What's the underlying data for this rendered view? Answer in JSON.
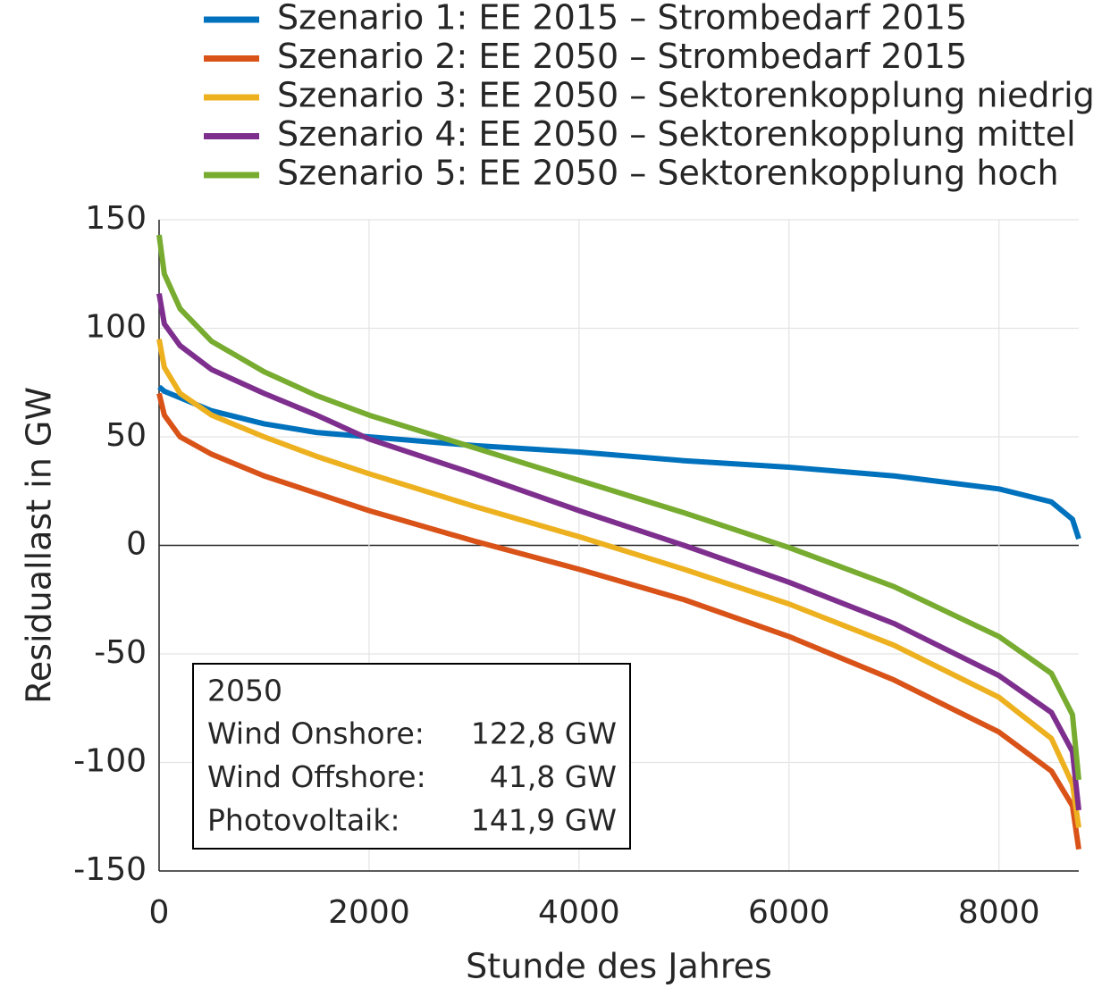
{
  "chart_data": {
    "type": "line",
    "x_label": "Stunde des Jahres",
    "y_label": "Residuallast in GW",
    "x": [
      0,
      50,
      200,
      500,
      1000,
      1500,
      2000,
      3000,
      4000,
      5000,
      6000,
      7000,
      8000,
      8500,
      8700,
      8760
    ],
    "series": [
      {
        "name": "Szenario 1: EE 2015 – Strombedarf 2015",
        "color": "#0072bd",
        "values": [
          73,
          71,
          68,
          62,
          56,
          52,
          50,
          46,
          43,
          39,
          36,
          32,
          26,
          20,
          12,
          3
        ]
      },
      {
        "name": "Szenario 2: EE 2050 – Strombedarf 2015",
        "color": "#d95319",
        "values": [
          70,
          60,
          50,
          42,
          32,
          24,
          16,
          2,
          -11,
          -25,
          -42,
          -62,
          -86,
          -104,
          -120,
          -140
        ]
      },
      {
        "name": "Szenario 3: EE 2050 – Sektorenkopplung niedrig",
        "color": "#edb120",
        "values": [
          95,
          82,
          70,
          60,
          50,
          41,
          33,
          18,
          4,
          -11,
          -27,
          -46,
          -70,
          -89,
          -110,
          -130
        ]
      },
      {
        "name": "Szenario 4: EE 2050 – Sektorenkopplung mittel",
        "color": "#7e2f8e",
        "values": [
          116,
          102,
          92,
          81,
          70,
          60,
          49,
          33,
          16,
          0,
          -17,
          -36,
          -60,
          -77,
          -95,
          -122
        ]
      },
      {
        "name": "Szenario 5: EE 2050 – Sektorenkopplung hoch",
        "color": "#77ac30",
        "values": [
          143,
          125,
          109,
          94,
          80,
          69,
          60,
          45,
          30,
          15,
          -1,
          -19,
          -42,
          -59,
          -78,
          -108
        ]
      }
    ],
    "xlim": [
      0,
      8760
    ],
    "xticks": [
      0,
      2000,
      4000,
      6000,
      8000
    ],
    "ylim": [
      -150,
      150
    ],
    "yticks": [
      -150,
      -100,
      -50,
      0,
      50,
      100,
      150
    ],
    "grid": true,
    "annotation": {
      "title": "2050",
      "rows": [
        [
          "Wind Onshore:",
          "122,8 GW"
        ],
        [
          "Wind Offshore:",
          "41,8 GW"
        ],
        [
          "Photovoltaik:",
          "141,9 GW"
        ]
      ]
    }
  }
}
